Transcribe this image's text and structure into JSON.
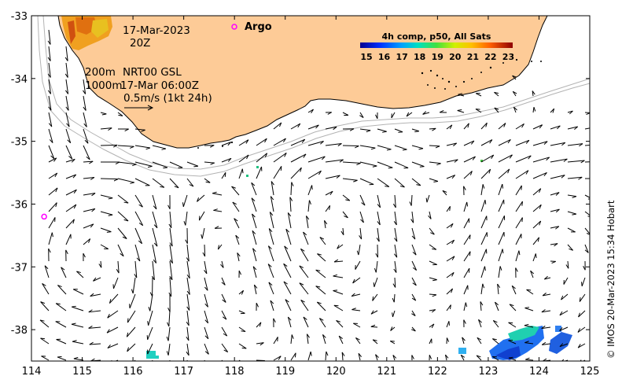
{
  "map": {
    "region": "South-west Western Australia",
    "lon_range": [
      114,
      125
    ],
    "lat_range": [
      -38.5,
      -33
    ],
    "x_ticks": [
      "114",
      "115",
      "116",
      "117",
      "118",
      "119",
      "120",
      "121",
      "122",
      "123",
      "124",
      "125"
    ],
    "y_ticks": [
      "-33",
      "-34",
      "-35",
      "-36",
      "-37",
      "-38"
    ],
    "date_label": "17-Mar-2023",
    "time_label": "20Z",
    "depth_200": "200m",
    "depth_1000": "1000m",
    "product_label": "NRT00 GSL",
    "product_time": "17-Mar 06:00Z",
    "scale_label": "0.5m/s (1kt 24h)",
    "argo_label": "Argo",
    "argo_floats": [
      {
        "lon": 118.05,
        "lat": -33.17
      },
      {
        "lon": 114.25,
        "lat": -36.2
      }
    ],
    "colorbar": {
      "title": "4h comp, p50, All Sats",
      "ticks": [
        "15",
        "16",
        "17",
        "18",
        "19",
        "20",
        "21",
        "22",
        "23"
      ],
      "min": 15,
      "max": 23.6
    },
    "credit": "© IMOS 20-Mar-2023 15:34 Hobart",
    "colors": {
      "land": "#fdcb97",
      "coast": "#000000",
      "isobath": "#b3b3b3",
      "arrow": "#000000",
      "argo": "#ff00ff"
    }
  }
}
